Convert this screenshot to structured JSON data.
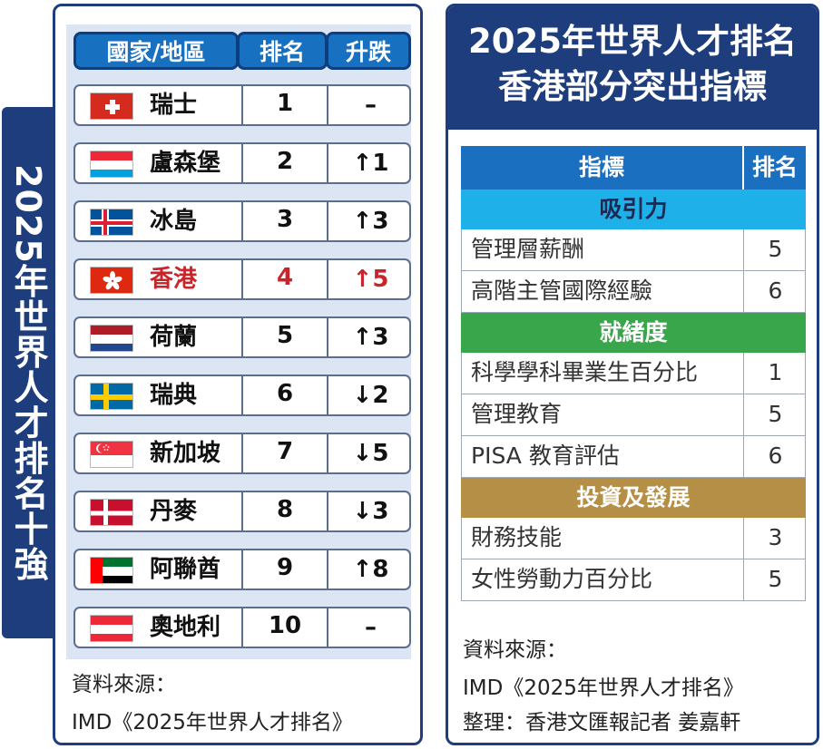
{
  "left": {
    "vertical_title": "2025年世界人才排名十強",
    "headers": {
      "country": "國家/地區",
      "rank": "排名",
      "change": "升跌"
    },
    "rows": [
      {
        "name": "瑞士",
        "rank": "1",
        "change": "–",
        "flag": "switzerland-flag",
        "highlight": false
      },
      {
        "name": "盧森堡",
        "rank": "2",
        "change": "↑1",
        "flag": "luxembourg-flag",
        "highlight": false
      },
      {
        "name": "冰島",
        "rank": "3",
        "change": "↑3",
        "flag": "iceland-flag",
        "highlight": false
      },
      {
        "name": "香港",
        "rank": "4",
        "change": "↑5",
        "flag": "hongkong-flag",
        "highlight": true
      },
      {
        "name": "荷蘭",
        "rank": "5",
        "change": "↑3",
        "flag": "netherlands-flag",
        "highlight": false
      },
      {
        "name": "瑞典",
        "rank": "6",
        "change": "↓2",
        "flag": "sweden-flag",
        "highlight": false
      },
      {
        "name": "新加坡",
        "rank": "7",
        "change": "↓5",
        "flag": "singapore-flag",
        "highlight": false
      },
      {
        "name": "丹麥",
        "rank": "8",
        "change": "↓3",
        "flag": "denmark-flag",
        "highlight": false
      },
      {
        "name": "阿聯酋",
        "rank": "9",
        "change": "↑8",
        "flag": "uae-flag",
        "highlight": false
      },
      {
        "name": "奧地利",
        "rank": "10",
        "change": "–",
        "flag": "austria-flag",
        "highlight": false
      }
    ],
    "source_label": "資料來源：",
    "source_text": "IMD《2025年世界人才排名》"
  },
  "right": {
    "title_line1": "2025年世界人才排名",
    "title_line2": "香港部分突出指標",
    "headers": {
      "indicator": "指標",
      "rank": "排名"
    },
    "sections": [
      {
        "title": "吸引力",
        "color": "#1eb0e8",
        "rows": [
          {
            "name": "管理層薪酬",
            "rank": "5"
          },
          {
            "name": "高階主管國際經驗",
            "rank": "6"
          }
        ]
      },
      {
        "title": "就緒度",
        "color": "#3aa64c",
        "rows": [
          {
            "name": "科學學科畢業生百分比",
            "rank": "1"
          },
          {
            "name": "管理教育",
            "rank": "5"
          },
          {
            "name": "PISA 教育評估",
            "rank": "6"
          }
        ]
      },
      {
        "title": "投資及發展",
        "color": "#b48f45",
        "rows": [
          {
            "name": "財務技能",
            "rank": "3"
          },
          {
            "name": "女性勞動力百分比",
            "rank": "5"
          }
        ]
      }
    ],
    "source_label": "資料來源：",
    "source_text": "IMD《2025年世界人才排名》",
    "credit": "整理：香港文匯報記者 姜嘉軒"
  },
  "colors": {
    "navy": "#1d3d7c",
    "header_blue": "#1870c0",
    "highlight_red": "#c8242a"
  }
}
